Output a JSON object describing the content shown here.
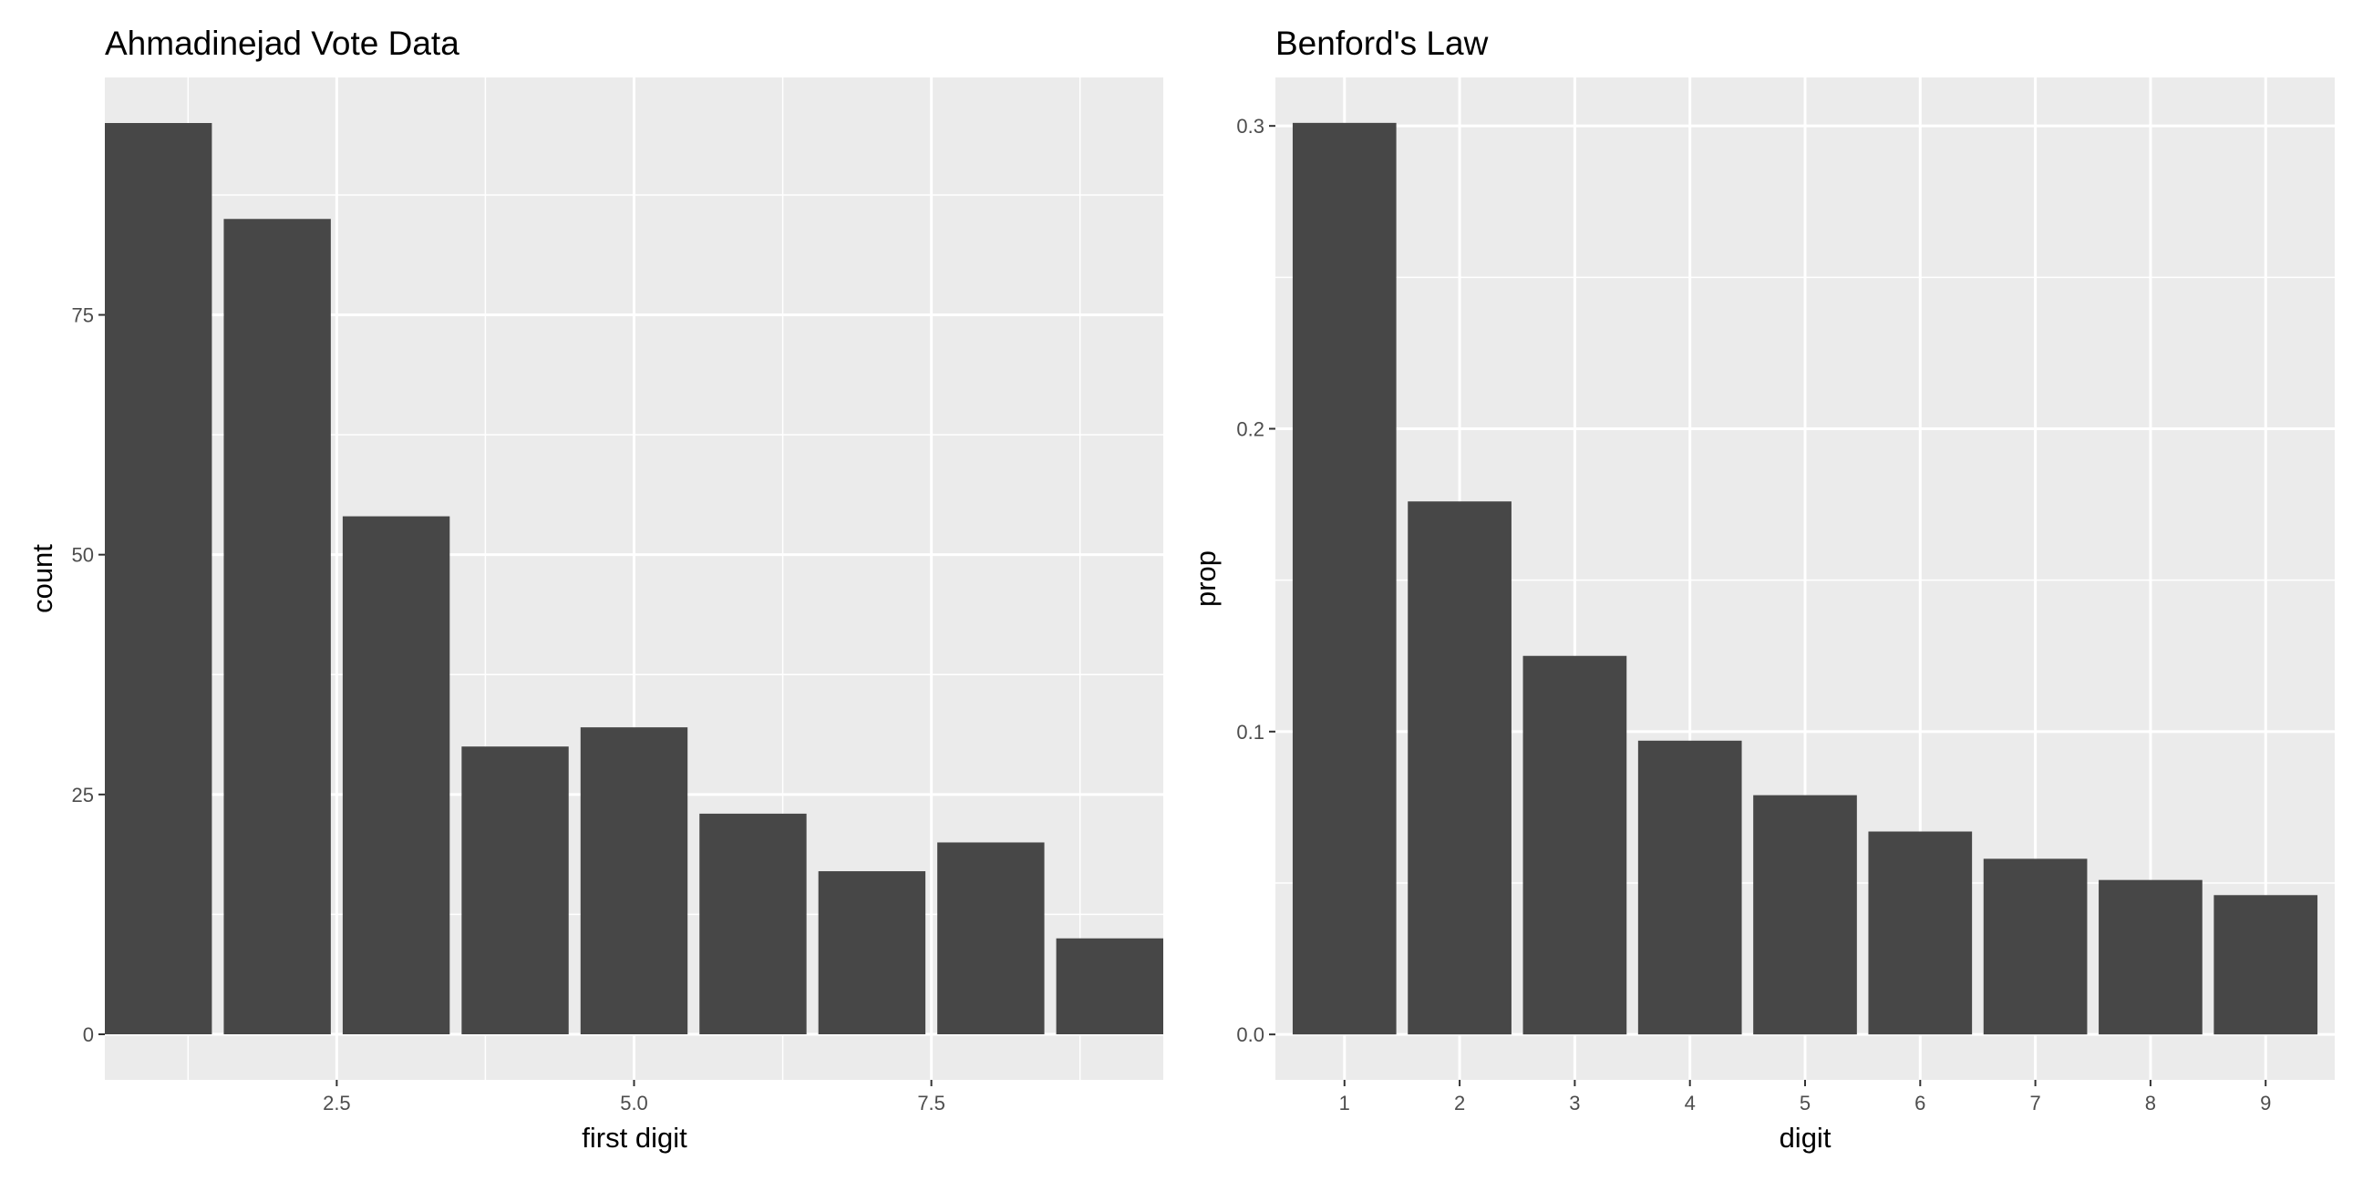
{
  "chart_data": [
    {
      "type": "bar",
      "title": "Ahmadinejad Vote Data",
      "xlabel": "first digit",
      "ylabel": "count",
      "x": [
        1,
        2,
        3,
        4,
        5,
        6,
        7,
        8,
        9
      ],
      "values": [
        95,
        85,
        54,
        30,
        32,
        23,
        17,
        20,
        10
      ],
      "xlim": [
        0.55,
        9.45
      ],
      "ylim": [
        -4.75,
        99.75
      ],
      "x_ticks": [
        2.5,
        5.0,
        7.5
      ],
      "x_tick_labels": [
        "2.5",
        "5.0",
        "7.5"
      ],
      "y_ticks": [
        0,
        25,
        50,
        75
      ],
      "y_tick_labels": [
        "0",
        "25",
        "50",
        "75"
      ],
      "bar_width": 0.9,
      "grid": true,
      "panel_color": "#EBEBEB",
      "grid_color": "#FFFFFF",
      "bar_color": "#474747"
    },
    {
      "type": "bar",
      "title": "Benford's Law",
      "xlabel": "digit",
      "ylabel": "prop",
      "categories": [
        "1",
        "2",
        "3",
        "4",
        "5",
        "6",
        "7",
        "8",
        "9"
      ],
      "values": [
        0.301,
        0.176,
        0.125,
        0.097,
        0.079,
        0.067,
        0.058,
        0.051,
        0.046
      ],
      "ylim": [
        -0.015,
        0.316
      ],
      "y_ticks": [
        0.0,
        0.1,
        0.2,
        0.3
      ],
      "y_tick_labels": [
        "0.0",
        "0.1",
        "0.2",
        "0.3"
      ],
      "bar_width": 0.9,
      "grid": true,
      "panel_color": "#EBEBEB",
      "grid_color": "#FFFFFF",
      "bar_color": "#474747"
    }
  ]
}
